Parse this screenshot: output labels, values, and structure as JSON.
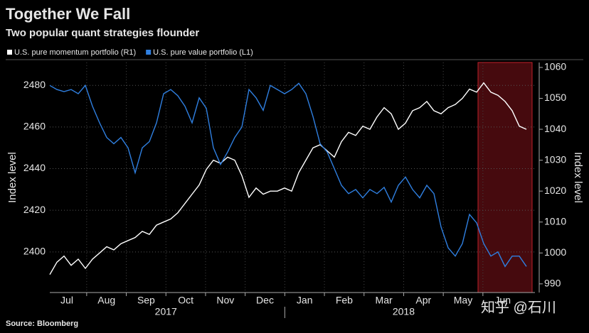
{
  "chart_data": {
    "type": "line",
    "title": "Together We Fall",
    "subtitle": "Two popular quant strategies flounder",
    "source": "Source: Bloomberg",
    "watermark": "知乎 @石川",
    "ylabel": "Index level",
    "y2label": "Index level",
    "months": [
      "Jul",
      "Aug",
      "Sep",
      "Oct",
      "Nov",
      "Dec",
      "Jan",
      "Feb",
      "Mar",
      "Apr",
      "May",
      "Jun"
    ],
    "years": [
      "2017",
      "2018"
    ],
    "ylim": [
      2380.5,
      2491
    ],
    "yticks": [
      2400,
      2420,
      2440,
      2460,
      2480
    ],
    "y2lim": [
      987.2,
      1061.6
    ],
    "y2ticks": [
      990,
      1000,
      1010,
      1020,
      1030,
      1040,
      1050,
      1060
    ],
    "grid": true,
    "series": [
      {
        "name": "U.S. pure momentum portfolio (R1)",
        "color": "#ffffff",
        "axis": "y2",
        "values": [
          993,
          997,
          999,
          996,
          998,
          995,
          998,
          1000,
          1002,
          1001,
          1003,
          1004,
          1005,
          1007,
          1006,
          1009,
          1010,
          1011,
          1013,
          1016,
          1019,
          1022,
          1027,
          1030,
          1029,
          1031,
          1030,
          1025,
          1018,
          1021,
          1019,
          1020,
          1020,
          1021,
          1020,
          1026,
          1030,
          1034,
          1035,
          1033,
          1031,
          1036,
          1039,
          1038,
          1041,
          1040,
          1044,
          1047,
          1045,
          1040,
          1042,
          1046,
          1047,
          1049,
          1046,
          1045,
          1047,
          1048,
          1050,
          1053,
          1052,
          1055,
          1052,
          1051,
          1049,
          1046,
          1041,
          1040
        ]
      },
      {
        "name": "U.S. pure value portfolio (L1)",
        "color": "#2f7fe0",
        "values": [
          2480,
          2478,
          2477,
          2478,
          2476,
          2480,
          2470,
          2462,
          2455,
          2452,
          2455,
          2450,
          2438,
          2450,
          2453,
          2462,
          2476,
          2478,
          2475,
          2470,
          2462,
          2474,
          2469,
          2450,
          2442,
          2448,
          2455,
          2460,
          2478,
          2474,
          2468,
          2480,
          2478,
          2476,
          2478,
          2481,
          2476,
          2465,
          2452,
          2448,
          2440,
          2432,
          2428,
          2430,
          2426,
          2430,
          2428,
          2431,
          2424,
          2432,
          2436,
          2430,
          2426,
          2432,
          2428,
          2412,
          2402,
          2398,
          2404,
          2418,
          2414,
          2404,
          2398,
          2400,
          2393,
          2398,
          2398,
          2393
        ]
      }
    ]
  }
}
